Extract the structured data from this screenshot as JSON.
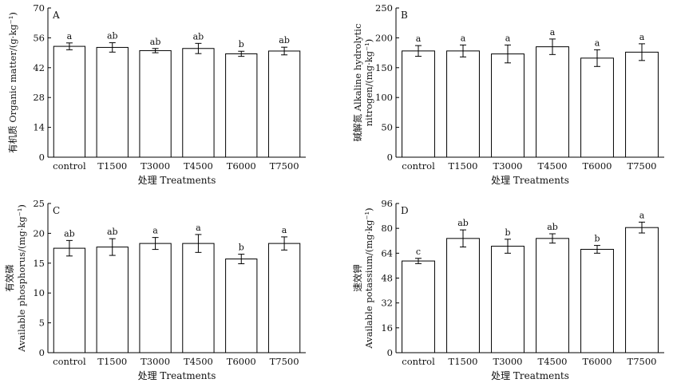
{
  "chart_data": [
    {
      "panel": "A",
      "type": "bar",
      "categories": [
        "control",
        "T1500",
        "T3000",
        "T4500",
        "T6000",
        "T7500"
      ],
      "values": [
        52.0,
        51.5,
        50.0,
        51.0,
        48.5,
        49.8
      ],
      "errors": [
        1.6,
        2.2,
        1.0,
        2.4,
        1.2,
        1.8
      ],
      "significance": [
        "a",
        "ab",
        "ab",
        "ab",
        "b",
        "ab"
      ],
      "ylim": [
        0,
        70
      ],
      "yticks": [
        0,
        14,
        28,
        42,
        56,
        70
      ],
      "xlabel": "处理 Treatments",
      "ylabel_lines": [
        "有机质 Organic matter/(g·kg⁻¹)"
      ]
    },
    {
      "panel": "B",
      "type": "bar",
      "categories": [
        "control",
        "T1500",
        "T3000",
        "T4500",
        "T6000",
        "T7500"
      ],
      "values": [
        178,
        178,
        173,
        185,
        166,
        176
      ],
      "errors": [
        9,
        10,
        15,
        13,
        14,
        14
      ],
      "significance": [
        "a",
        "a",
        "a",
        "a",
        "a",
        "a"
      ],
      "ylim": [
        0,
        250
      ],
      "yticks": [
        0,
        50,
        100,
        150,
        200,
        250
      ],
      "xlabel": "处理 Treatments",
      "ylabel_lines": [
        "碱解氮 Alkaline hydrolytic",
        "nitrogen/(mg·kg⁻¹)"
      ]
    },
    {
      "panel": "C",
      "type": "bar",
      "categories": [
        "control",
        "T1500",
        "T3000",
        "T4500",
        "T6000",
        "T7500"
      ],
      "values": [
        17.5,
        17.7,
        18.3,
        18.3,
        15.7,
        18.3
      ],
      "errors": [
        1.3,
        1.4,
        1.0,
        1.5,
        0.8,
        1.1
      ],
      "significance": [
        "ab",
        "ab",
        "a",
        "a",
        "b",
        "a"
      ],
      "ylim": [
        0,
        25
      ],
      "yticks": [
        0,
        5,
        10,
        15,
        20,
        25
      ],
      "xlabel": "处理 Treatments",
      "ylabel_lines": [
        "有效磷",
        "Available phosphorus/(mg·kg⁻¹)"
      ]
    },
    {
      "panel": "D",
      "type": "bar",
      "categories": [
        "control",
        "T1500",
        "T3000",
        "T4500",
        "T6000",
        "T7500"
      ],
      "values": [
        59,
        73.5,
        68.5,
        73.5,
        66.5,
        80.5
      ],
      "errors": [
        1.7,
        5.5,
        4.5,
        3.0,
        2.5,
        3.5
      ],
      "significance": [
        "c",
        "ab",
        "b",
        "ab",
        "b",
        "a"
      ],
      "ylim": [
        0,
        96
      ],
      "yticks": [
        0,
        16,
        32,
        48,
        64,
        80,
        96
      ],
      "xlabel": "处理 Treatments",
      "ylabel_lines": [
        "速效钾",
        "Available potassium/(mg·kg⁻¹)"
      ]
    }
  ]
}
